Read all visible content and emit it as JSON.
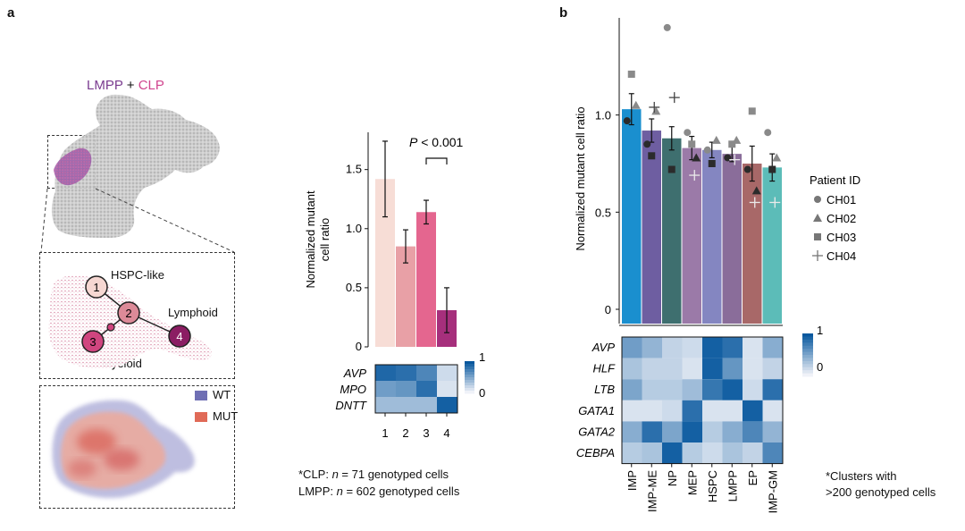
{
  "panels": {
    "a": "a",
    "b": "b"
  },
  "umap": {
    "label_lmpp": "LMPP",
    "label_plus": " + ",
    "label_clp": "CLP",
    "colors": {
      "lmpp": "#7a3b8f",
      "clp": "#d0458e",
      "cells": "#bdbdbd"
    }
  },
  "trajectory": {
    "nodes": [
      "1",
      "2",
      "3",
      "4"
    ],
    "labels": {
      "hspc": "HSPC-like",
      "lymphoid": "Lymphoid",
      "myeloid": "Myeloid"
    },
    "node_colors": [
      "#f6d7d2",
      "#dc8a98",
      "#d0457f",
      "#8b1d63"
    ]
  },
  "density": {
    "legend": [
      {
        "label": "WT",
        "color": "#6f6fb4"
      },
      {
        "label": "MUT",
        "color": "#e06a57"
      }
    ]
  },
  "notes": {
    "a_line1_prefix": "*CLP: ",
    "a_line1_n": "n",
    "a_line1_suffix": " = 71 genotyped cells",
    "a_line2_prefix": "LMPP: ",
    "a_line2_n": "n",
    "a_line2_suffix": " = 602 genotyped cells",
    "b_line1": "*Clusters with",
    "b_line2": ">200 genotyped cells"
  },
  "chart_data": [
    {
      "id": "panel-a-bar",
      "type": "bar",
      "ylabel_lines": [
        "Normalized mutant",
        "cell ratio"
      ],
      "categories": [
        "1",
        "2",
        "3",
        "4"
      ],
      "values": [
        1.42,
        0.85,
        1.14,
        0.31
      ],
      "errors": [
        0.32,
        0.14,
        0.1,
        0.19
      ],
      "colors": [
        "#f7ddd6",
        "#e8a0a6",
        "#e4668f",
        "#a62f7c"
      ],
      "ylim": [
        0,
        1.8
      ],
      "yticks": [
        0,
        0.5,
        1.0,
        1.5
      ],
      "ytick_labels": [
        "0",
        "0.5",
        "1.0",
        "1.5"
      ],
      "annotation": {
        "p": "P",
        "text": " < 0.001",
        "between": [
          3,
          4
        ]
      },
      "heatmap": {
        "genes": [
          "AVP",
          "MPO",
          "DNTT"
        ],
        "values": [
          [
            0.9,
            0.85,
            0.7,
            0.15
          ],
          [
            0.55,
            0.6,
            0.85,
            0.1
          ],
          [
            0.35,
            0.35,
            0.35,
            0.95
          ]
        ],
        "scale": {
          "min": "0",
          "max": "1"
        }
      }
    },
    {
      "id": "panel-b-bar",
      "type": "bar",
      "ylabel": "Normalized mutant cell ratio",
      "categories": [
        "IMP",
        "IMP-ME",
        "NP",
        "MEP",
        "HSPC",
        "LMPP",
        "EP",
        "IMP-GM"
      ],
      "values": [
        1.03,
        0.92,
        0.88,
        0.83,
        0.82,
        0.8,
        0.75,
        0.73
      ],
      "errors": [
        0.08,
        0.06,
        0.06,
        0.06,
        0.04,
        0.04,
        0.09,
        0.07
      ],
      "colors": [
        "#1a8fcf",
        "#6e5ea1",
        "#3e6f6f",
        "#9b7aa8",
        "#8486c1",
        "#8a6d9a",
        "#a86868",
        "#5cbcb8"
      ],
      "ylim": [
        0,
        1.5
      ],
      "yticks": [
        0,
        0.5,
        1.0
      ],
      "ytick_labels": [
        "0",
        "0.5",
        "1.0"
      ],
      "patients": {
        "title": "Patient ID",
        "ids": [
          "CH01",
          "CH02",
          "CH03",
          "CH04"
        ],
        "points": [
          [
            0.97,
            1.05,
            1.21,
            null
          ],
          [
            0.85,
            1.02,
            0.79,
            1.04
          ],
          [
            1.45,
            null,
            0.72,
            1.09
          ],
          [
            0.91,
            0.78,
            0.85,
            0.69
          ],
          [
            0.82,
            0.87,
            0.75,
            null
          ],
          [
            0.78,
            0.87,
            0.85,
            0.77
          ],
          [
            0.72,
            0.61,
            1.02,
            0.55
          ],
          [
            0.91,
            0.78,
            0.72,
            0.55
          ]
        ]
      },
      "heatmap": {
        "genes": [
          "AVP",
          "HLF",
          "LTB",
          "GATA1",
          "GATA2",
          "CEBPA"
        ],
        "values": [
          [
            0.55,
            0.4,
            0.2,
            0.15,
            0.95,
            0.85,
            0.1,
            0.45
          ],
          [
            0.3,
            0.2,
            0.2,
            0.1,
            0.95,
            0.6,
            0.1,
            0.2
          ],
          [
            0.5,
            0.25,
            0.25,
            0.35,
            0.8,
            0.95,
            0.15,
            0.85
          ],
          [
            0.1,
            0.1,
            0.15,
            0.85,
            0.1,
            0.1,
            0.95,
            0.1
          ],
          [
            0.45,
            0.85,
            0.5,
            0.95,
            0.25,
            0.45,
            0.7,
            0.4
          ],
          [
            0.25,
            0.3,
            0.95,
            0.25,
            0.15,
            0.3,
            0.2,
            0.7
          ]
        ],
        "scale": {
          "min": "0",
          "max": "1"
        }
      }
    }
  ]
}
